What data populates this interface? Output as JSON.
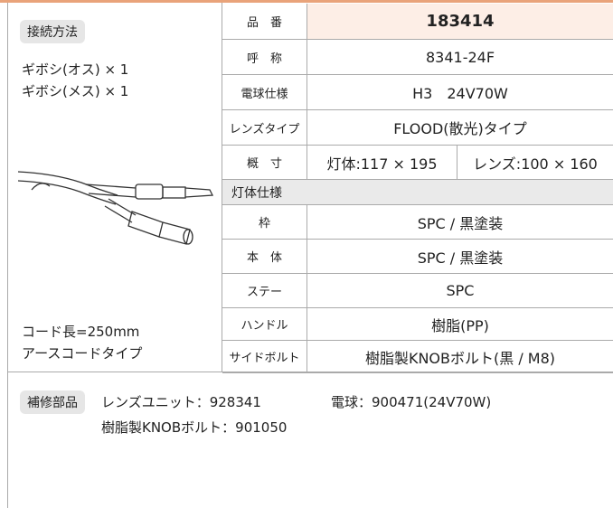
{
  "connection": {
    "label": "接続方法",
    "items": [
      "ギボシ(オス) × 1",
      "ギボシ(メス) × 1"
    ],
    "notes": [
      "コード長=250mm",
      "アースコードタイプ"
    ]
  },
  "specs": {
    "rows": [
      {
        "label": "品　番",
        "value": "183414"
      },
      {
        "label": "呼　称",
        "value": "8341-24F"
      },
      {
        "label": "電球仕様",
        "value": "H3　24V70W"
      },
      {
        "label": "レンズタイプ",
        "value": "FLOOD(散光)タイプ"
      }
    ],
    "size": {
      "label": "概　寸",
      "values": [
        "灯体:117 × 195",
        "レンズ:100 × 160"
      ]
    },
    "section": "灯体仕様",
    "body_rows": [
      {
        "label": "枠",
        "value": "SPC / 黒塗装"
      },
      {
        "label": "本　体",
        "value": "SPC / 黒塗装"
      },
      {
        "label": "ステー",
        "value": "SPC"
      },
      {
        "label": "ハンドル",
        "value": "樹脂(PP)"
      },
      {
        "label": "サイドボルト",
        "value": "樹脂製KNOBボルト(黒 / M8)"
      }
    ]
  },
  "parts": {
    "label": "補修部品",
    "items": [
      "レンズユニット：928341",
      "電球：900471(24V70W)",
      "樹脂製KNOBボルト：901050"
    ]
  }
}
